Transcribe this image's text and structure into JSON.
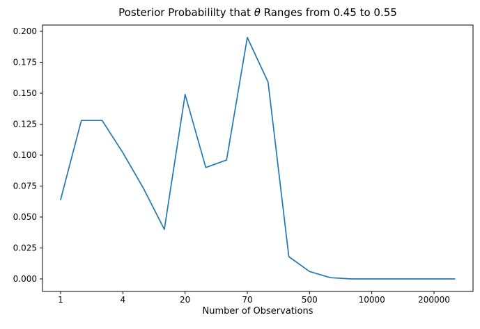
{
  "figure": {
    "background": "#ffffff",
    "frame_color": "#000000"
  },
  "chart_data": {
    "type": "line",
    "title": "Posterior Probabililty that θ Ranges from 0.45 to 0.55",
    "title_parts": {
      "prefix": "Posterior Probabililty that ",
      "theta": "θ",
      "suffix": " Ranges from 0.45 to 0.55"
    },
    "xlabel": "Number of Observations",
    "ylabel": "",
    "line_color": "#1f77b4",
    "grid": false,
    "legend": null,
    "x_axis_note": "20 points plotted at evenly spaced index positions 0-19; labeled ticks at indices below",
    "x_tick_indices": [
      0,
      3,
      6,
      9,
      12,
      15,
      18
    ],
    "x_tick_labels": [
      "1",
      "4",
      "20",
      "70",
      "500",
      "10000",
      "200000"
    ],
    "y_ticks": [
      0.0,
      0.025,
      0.05,
      0.075,
      0.1,
      0.125,
      0.15,
      0.175,
      0.2
    ],
    "y_tick_labels": [
      "0.000",
      "0.025",
      "0.050",
      "0.075",
      "0.100",
      "0.125",
      "0.150",
      "0.175",
      "0.200"
    ],
    "ylim": [
      -0.01,
      0.205
    ],
    "values": [
      0.064,
      0.128,
      0.128,
      0.102,
      0.073,
      0.04,
      0.149,
      0.09,
      0.096,
      0.195,
      0.159,
      0.018,
      0.006,
      0.001,
      0.0,
      0.0,
      0.0,
      0.0,
      0.0,
      0.0
    ]
  }
}
